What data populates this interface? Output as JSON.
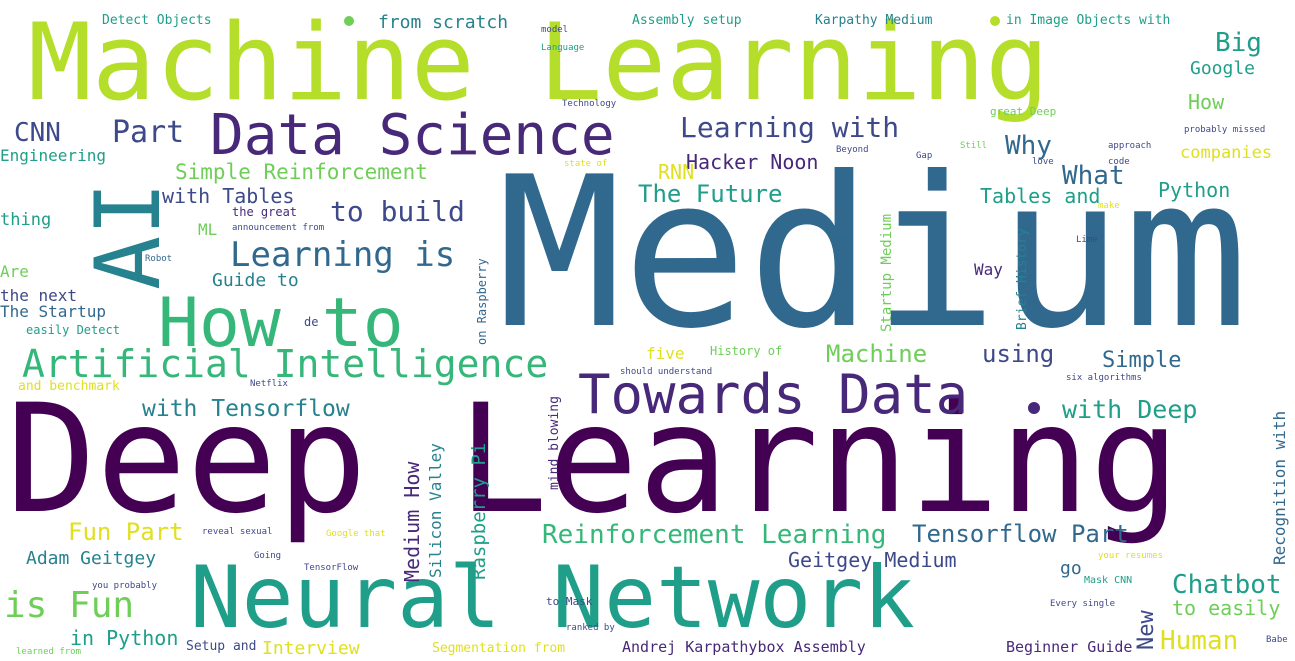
{
  "palette": {
    "purple": "#440154",
    "indigo": "#482878",
    "blue": "#3e4989",
    "steel": "#31688e",
    "teal": "#26828e",
    "cyan": "#1f9e89",
    "green": "#35b779",
    "lime": "#6ece58",
    "yellowgreen": "#b5de2b",
    "yellow": "#e0e020"
  },
  "words": [
    {
      "text": "Medium",
      "color": "steel"
    },
    {
      "text": "Deep Learning",
      "color": "purple"
    },
    {
      "text": "Machine Learning",
      "color": "yellowgreen"
    },
    {
      "text": "Neural Network",
      "color": "cyan"
    },
    {
      "text": "AI",
      "color": "teal"
    },
    {
      "text": "How to",
      "color": "green"
    },
    {
      "text": "Data Science",
      "color": "indigo"
    },
    {
      "text": "Towards Data",
      "color": "indigo"
    },
    {
      "text": "Artificial Intelligence",
      "color": "green"
    },
    {
      "text": "Learning is",
      "color": "steel"
    },
    {
      "text": "to build",
      "color": "blue"
    },
    {
      "text": "Part",
      "color": "blue"
    },
    {
      "text": "CNN",
      "color": "blue"
    },
    {
      "text": "Learning with",
      "color": "blue"
    },
    {
      "text": "Simple Reinforcement",
      "color": "lime"
    },
    {
      "text": "with Tables",
      "color": "blue"
    },
    {
      "text": "The Future",
      "color": "cyan"
    },
    {
      "text": "Hacker Noon",
      "color": "indigo"
    },
    {
      "text": "RNN",
      "color": "yellow"
    },
    {
      "text": "Why",
      "color": "steel"
    },
    {
      "text": "What",
      "color": "steel"
    },
    {
      "text": "Python",
      "color": "cyan"
    },
    {
      "text": "Tables and",
      "color": "cyan"
    },
    {
      "text": "Big",
      "color": "cyan"
    },
    {
      "text": "Google",
      "color": "cyan"
    },
    {
      "text": "How",
      "color": "lime"
    },
    {
      "text": "companies",
      "color": "yellow"
    },
    {
      "text": "with Tensorflow",
      "color": "teal"
    },
    {
      "text": "with Deep",
      "color": "cyan"
    },
    {
      "text": "Machine",
      "color": "lime"
    },
    {
      "text": "using",
      "color": "blue"
    },
    {
      "text": "Simple",
      "color": "steel"
    },
    {
      "text": "five",
      "color": "yellow"
    },
    {
      "text": "Fun Part",
      "color": "yellow"
    },
    {
      "text": "Adam Geitgey",
      "color": "teal"
    },
    {
      "text": "is Fun",
      "color": "lime"
    },
    {
      "text": "in Python",
      "color": "cyan"
    },
    {
      "text": "Interview",
      "color": "yellow"
    },
    {
      "text": "Reinforcement Learning",
      "color": "green"
    },
    {
      "text": "Tensorflow Part",
      "color": "steel"
    },
    {
      "text": "Geitgey Medium",
      "color": "blue"
    },
    {
      "text": "Chatbot",
      "color": "cyan"
    },
    {
      "text": "to easily",
      "color": "lime"
    },
    {
      "text": "Human",
      "color": "yellow"
    },
    {
      "text": "New",
      "color": "blue"
    },
    {
      "text": "Engineering",
      "color": "cyan"
    },
    {
      "text": "thing",
      "color": "cyan"
    },
    {
      "text": "Are",
      "color": "lime"
    },
    {
      "text": "the next",
      "color": "blue"
    },
    {
      "text": "The Startup",
      "color": "steel"
    },
    {
      "text": "easily Detect",
      "color": "cyan"
    },
    {
      "text": "and benchmark",
      "color": "yellow"
    },
    {
      "text": "Guide to",
      "color": "teal"
    },
    {
      "text": "ML",
      "color": "lime"
    },
    {
      "text": "Detect Objects",
      "color": "cyan"
    },
    {
      "text": "from scratch",
      "color": "teal"
    },
    {
      "text": "Assembly setup",
      "color": "cyan"
    },
    {
      "text": "Karpathy Medium",
      "color": "teal"
    },
    {
      "text": "in Image Objects with",
      "color": "cyan"
    },
    {
      "text": "Medium How",
      "color": "indigo"
    },
    {
      "text": "Silicon Valley",
      "color": "teal"
    },
    {
      "text": "Raspberry Pi",
      "color": "cyan"
    },
    {
      "text": "mind blowing",
      "color": "indigo"
    },
    {
      "text": "Recognition with",
      "color": "steel"
    },
    {
      "text": "Startup Medium",
      "color": "lime"
    },
    {
      "text": "Brief History",
      "color": "teal"
    },
    {
      "text": "Way",
      "color": "indigo"
    },
    {
      "text": "History of",
      "color": "lime"
    },
    {
      "text": "great Deep",
      "color": "lime"
    },
    {
      "text": "Segmentation from",
      "color": "yellow"
    },
    {
      "text": "Andrej Karpathybox Assembly",
      "color": "indigo"
    },
    {
      "text": "Beginner Guide",
      "color": "indigo"
    },
    {
      "text": "Setup and",
      "color": "blue"
    },
    {
      "text": "Language",
      "color": "cyan"
    },
    {
      "text": "model",
      "color": "blue"
    },
    {
      "text": "Technology",
      "color": "blue"
    },
    {
      "text": "the great",
      "color": "indigo"
    },
    {
      "text": "announcement from",
      "color": "blue"
    },
    {
      "text": "should understand",
      "color": "blue"
    },
    {
      "text": "on Raspberry",
      "color": "steel"
    },
    {
      "text": "Robot",
      "color": "steel"
    },
    {
      "text": "go",
      "color": "steel"
    },
    {
      "text": "Mask CNN",
      "color": "cyan"
    },
    {
      "text": "Every single",
      "color": "blue"
    },
    {
      "text": "ranked by",
      "color": "blue"
    },
    {
      "text": "to Mask",
      "color": "blue"
    },
    {
      "text": "reveal sexual",
      "color": "blue"
    },
    {
      "text": "Google that",
      "color": "yellow"
    },
    {
      "text": "Going",
      "color": "blue"
    },
    {
      "text": "TensorFlow",
      "color": "blue"
    },
    {
      "text": "you probably",
      "color": "blue"
    },
    {
      "text": "learned from",
      "color": "lime"
    },
    {
      "text": "probably missed",
      "color": "blue"
    },
    {
      "text": "approach",
      "color": "blue"
    },
    {
      "text": "code",
      "color": "blue"
    },
    {
      "text": "Beyond",
      "color": "blue"
    },
    {
      "text": "Gap",
      "color": "blue"
    },
    {
      "text": "Still",
      "color": "lime"
    },
    {
      "text": "love",
      "color": "blue"
    },
    {
      "text": "six algorithms",
      "color": "blue"
    },
    {
      "text": "your resumes",
      "color": "yellow"
    },
    {
      "text": "Netflix",
      "color": "blue"
    },
    {
      "text": "de",
      "color": "blue"
    },
    {
      "text": "state of",
      "color": "yellow"
    },
    {
      "text": "make",
      "color": "yellow"
    },
    {
      "text": "Babe",
      "color": "blue"
    },
    {
      "text": "Lime",
      "color": "blue"
    }
  ],
  "dots": [
    {
      "color": "lime"
    },
    {
      "color": "yellowgreen"
    },
    {
      "color": "indigo"
    }
  ]
}
